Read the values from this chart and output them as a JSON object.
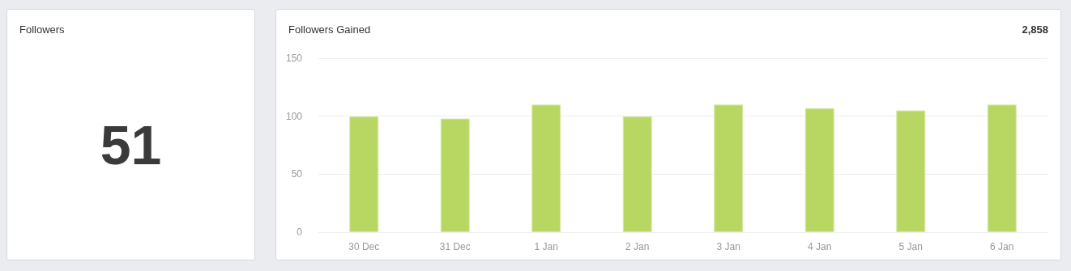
{
  "chart_data": [
    {
      "type": "other",
      "title": "Followers",
      "annotations": [
        "51"
      ]
    },
    {
      "type": "bar",
      "title": "Followers Gained",
      "annotations": [
        "2,858"
      ],
      "categories": [
        "30 Dec",
        "31 Dec",
        "1 Jan",
        "2 Jan",
        "3 Jan",
        "4 Jan",
        "5 Jan",
        "6 Jan"
      ],
      "values": [
        100,
        98,
        110,
        100,
        110,
        107,
        105,
        110
      ],
      "color": "#b8d762",
      "ylim": [
        0,
        150
      ],
      "yticks": [
        0,
        50,
        100,
        150
      ],
      "grid": "y"
    }
  ]
}
